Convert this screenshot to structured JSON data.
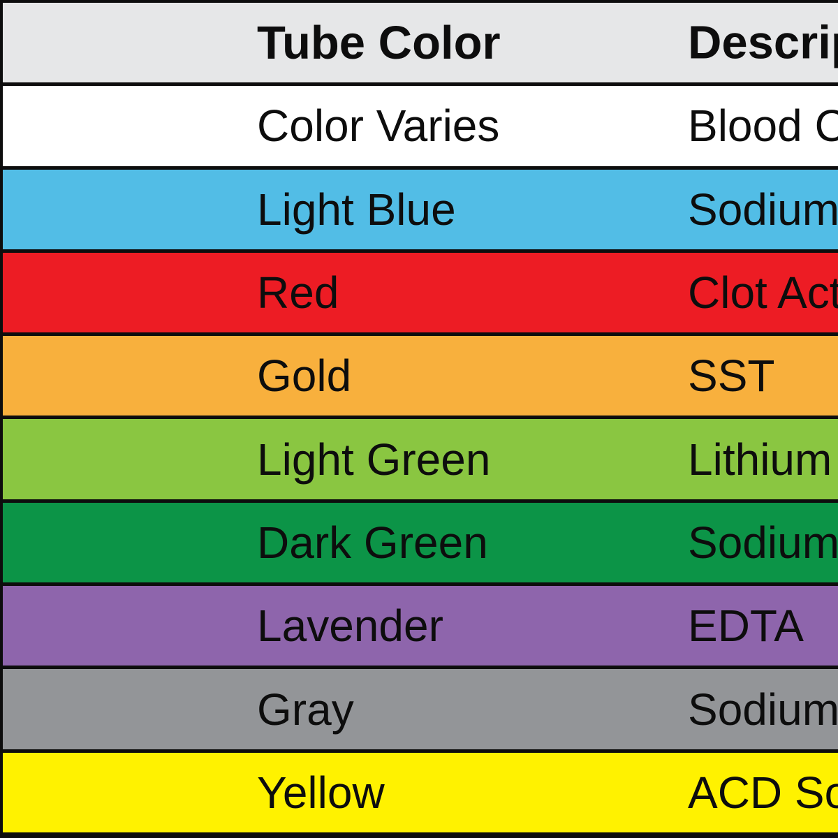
{
  "table": {
    "border_color": "#0d0d0d",
    "header": {
      "bg": "#E6E7E8",
      "tube_color_label": "Tube Color",
      "description_label": "Descrip"
    },
    "rows": [
      {
        "tube_color": "Color Varies",
        "description": "Blood C",
        "bg": "#FFFFFF"
      },
      {
        "tube_color": "Light Blue",
        "description": "Sodium",
        "bg": "#52BDE6"
      },
      {
        "tube_color": "Red",
        "description": "Clot Act",
        "bg": "#ED1C24"
      },
      {
        "tube_color": "Gold",
        "description": "SST",
        "bg": "#F8B03D"
      },
      {
        "tube_color": "Light Green",
        "description": "Lithium",
        "bg": "#8AC641"
      },
      {
        "tube_color": "Dark Green",
        "description": "Sodium",
        "bg": "#0C9447"
      },
      {
        "tube_color": "Lavender",
        "description": "EDTA",
        "bg": "#8E65AC"
      },
      {
        "tube_color": "Gray",
        "description": "Sodium",
        "bg": "#939598"
      },
      {
        "tube_color": "Yellow",
        "description": "ACD So",
        "bg": "#FFF200"
      }
    ]
  }
}
